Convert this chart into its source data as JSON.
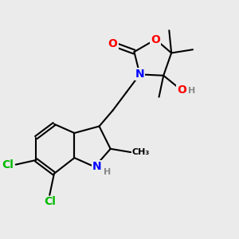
{
  "background_color": "#ebebeb",
  "atom_colors": {
    "C": "#000000",
    "N": "#0000ff",
    "O": "#ff0000",
    "Cl": "#00bb00",
    "H": "#888888"
  },
  "bond_color": "#000000",
  "bond_width": 1.5,
  "font_size_atoms": 10,
  "font_size_small": 8,
  "xlim": [
    0,
    10
  ],
  "ylim": [
    0,
    10
  ]
}
